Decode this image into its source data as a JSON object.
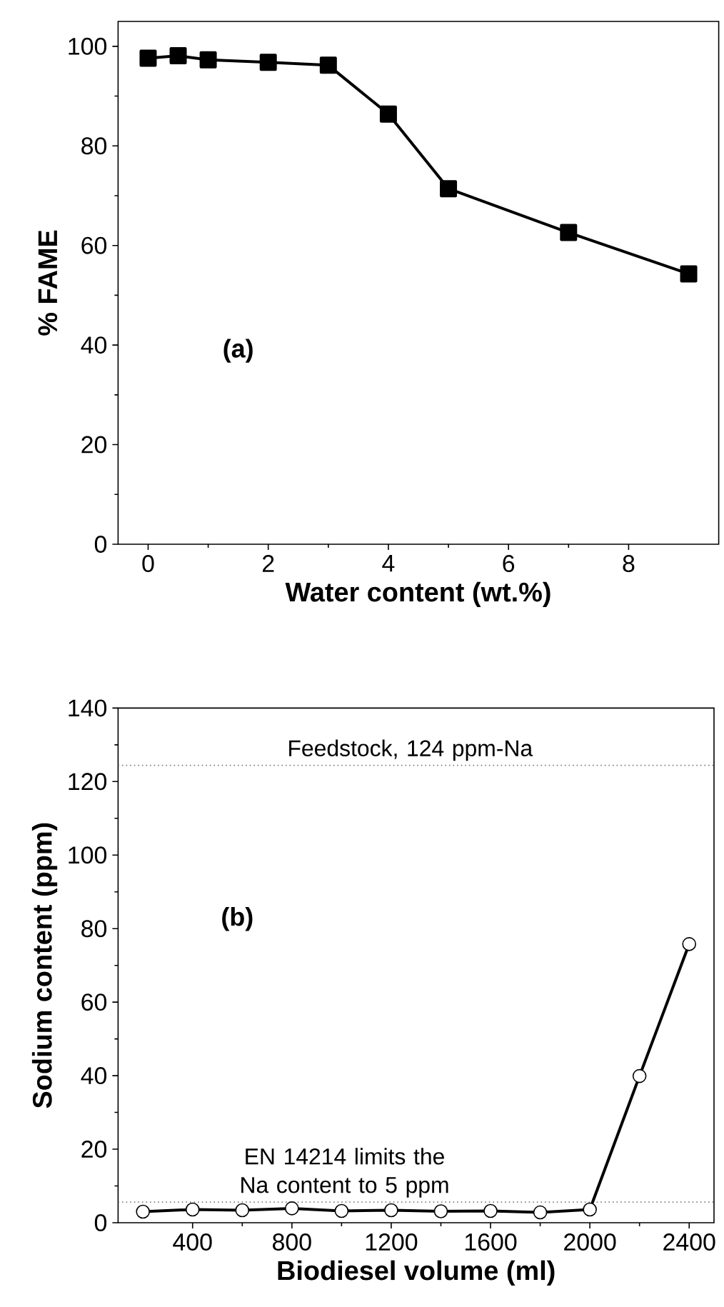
{
  "chart_data": [
    {
      "type": "line",
      "xlabel": "Water content (wt.%)",
      "ylabel": "% FAME",
      "annotations": [
        "(a)"
      ],
      "x": [
        0,
        0.5,
        1,
        2,
        3,
        4,
        5,
        7,
        9
      ],
      "series": [
        {
          "color": "#000000",
          "values": [
            97.6,
            98.1,
            97.3,
            96.8,
            96.2,
            86.4,
            71.4,
            62.6,
            54.3
          ]
        }
      ],
      "xlim": [
        -0.5,
        9.5
      ],
      "ylim": [
        0,
        105
      ],
      "xticks": [
        0,
        2,
        4,
        6,
        8
      ],
      "yticks": [
        0,
        20,
        40,
        60,
        80,
        100
      ],
      "marker": "square",
      "line_style": "solid"
    },
    {
      "type": "line",
      "xlabel": "Biodiesel volume (ml)",
      "ylabel": "Sodium content (ppm)",
      "annotations": [
        "(b)"
      ],
      "x": [
        200,
        400,
        600,
        800,
        1000,
        1200,
        1400,
        1600,
        1800,
        2000,
        2200,
        2400
      ],
      "series": [
        {
          "color": "#000000",
          "values": [
            3.0,
            3.6,
            3.4,
            3.9,
            3.2,
            3.4,
            3.1,
            3.2,
            2.8,
            3.6,
            39.9,
            75.8
          ]
        }
      ],
      "xlim": [
        100,
        2500
      ],
      "ylim": [
        0,
        140
      ],
      "xticks": [
        400,
        800,
        1200,
        1600,
        2000,
        2400
      ],
      "yticks": [
        0,
        20,
        40,
        60,
        80,
        100,
        120,
        140
      ],
      "ref_lines": [
        {
          "axis": "y",
          "value": 124.4,
          "label": "Feedstock, 124 ppm-Na",
          "color": "#808080",
          "line_style": "dotted"
        },
        {
          "axis": "y",
          "value": 5.6,
          "label": "EN 14214 limits the Na content to 5 ppm",
          "color": "#808080",
          "line_style": "dotted"
        }
      ],
      "marker": "circle",
      "line_style": "solid"
    }
  ]
}
